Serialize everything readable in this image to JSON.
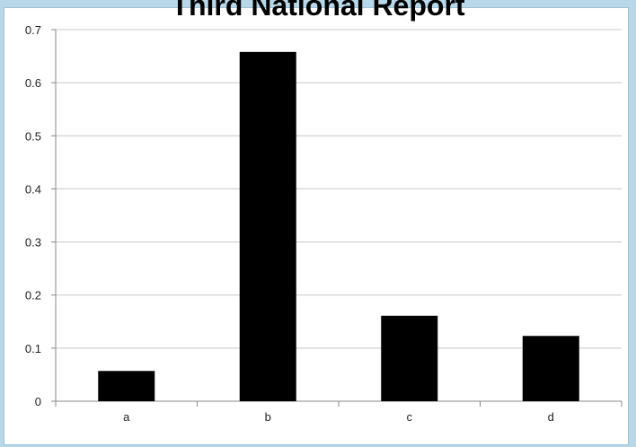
{
  "chart_data": {
    "type": "bar",
    "title": "Third National Report",
    "categories": [
      "a",
      "b",
      "c",
      "d"
    ],
    "values": [
      0.057,
      0.658,
      0.161,
      0.123
    ],
    "ylim": [
      0,
      0.7
    ],
    "yticks": [
      "0",
      "0.1",
      "0.2",
      "0.3",
      "0.4",
      "0.5",
      "0.6",
      "0.7"
    ],
    "grid": true,
    "bar_color": "#000000",
    "grid_color": "#c8c8c8"
  }
}
